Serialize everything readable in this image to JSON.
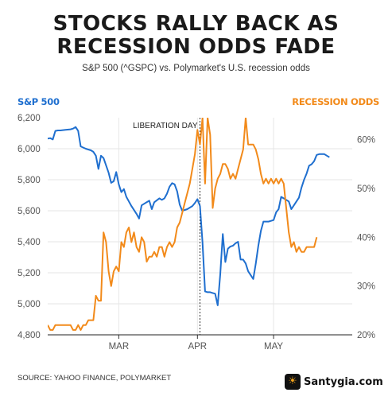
{
  "title_lines": [
    "STOCKS RALLY BACK AS",
    "RECESSION ODDS FADE"
  ],
  "subtitle": "S&P 500 (^GSPC) vs. Polymarket's U.S. recession odds",
  "source": "SOURCE: YAHOO FINANCE, POLYMARKET",
  "brand": {
    "name": "Santygia.com",
    "icon": "sun-logo-icon"
  },
  "colors": {
    "sp500": "#1f6fcf",
    "recession": "#f28a1a",
    "grid": "#e6e6e6",
    "text": "#555555"
  },
  "chart_data": {
    "type": "line",
    "title": "STOCKS RALLY BACK AS RECESSION ODDS FADE",
    "subtitle": "S&P 500 (^GSPC) vs. Polymarket's U.S. recession odds",
    "left_axis": {
      "label": "S&P 500",
      "ticks": [
        "6,200",
        "6,000",
        "5,800",
        "5,600",
        "5,400",
        "5,200",
        "5,000",
        "4,800"
      ],
      "tick_values": [
        6200,
        6000,
        5800,
        5600,
        5400,
        5200,
        5000,
        4800
      ],
      "ylim": [
        4800,
        6200
      ]
    },
    "right_axis": {
      "label": "RECESSION ODDS",
      "ticks": [
        "60%",
        "50%",
        "40%",
        "30%",
        "20%"
      ],
      "tick_values": [
        60,
        50,
        40,
        30,
        20
      ],
      "ylim": [
        20,
        64.5
      ]
    },
    "x_ticks": [
      {
        "label": "MAR",
        "day": 28
      },
      {
        "label": "APR",
        "day": 59
      },
      {
        "label": "MAY",
        "day": 89
      }
    ],
    "xlim": [
      0,
      120
    ],
    "annotation": {
      "label": "LIBERATION DAY",
      "day": 60
    },
    "grid": true,
    "series": [
      {
        "name": "S&P 500",
        "axis": "left",
        "points": [
          [
            0,
            6065
          ],
          [
            1,
            6068
          ],
          [
            2,
            6060
          ],
          [
            3,
            6115
          ],
          [
            4,
            6118
          ],
          [
            5,
            6118
          ],
          [
            7,
            6122
          ],
          [
            9,
            6125
          ],
          [
            10,
            6130
          ],
          [
            11,
            6140
          ],
          [
            12,
            6115
          ],
          [
            13,
            6015
          ],
          [
            15,
            6000
          ],
          [
            17,
            5990
          ],
          [
            18,
            5980
          ],
          [
            19,
            5955
          ],
          [
            20,
            5870
          ],
          [
            21,
            5955
          ],
          [
            22,
            5940
          ],
          [
            24,
            5845
          ],
          [
            25,
            5780
          ],
          [
            26,
            5790
          ],
          [
            27,
            5850
          ],
          [
            28,
            5770
          ],
          [
            29,
            5720
          ],
          [
            30,
            5740
          ],
          [
            31,
            5690
          ],
          [
            32,
            5660
          ],
          [
            33,
            5630
          ],
          [
            35,
            5580
          ],
          [
            36,
            5550
          ],
          [
            37,
            5635
          ],
          [
            38,
            5645
          ],
          [
            40,
            5665
          ],
          [
            41,
            5610
          ],
          [
            42,
            5655
          ],
          [
            44,
            5680
          ],
          [
            45,
            5670
          ],
          [
            46,
            5680
          ],
          [
            47,
            5710
          ],
          [
            48,
            5755
          ],
          [
            49,
            5778
          ],
          [
            50,
            5770
          ],
          [
            51,
            5725
          ],
          [
            52,
            5640
          ],
          [
            53,
            5600
          ],
          [
            55,
            5610
          ],
          [
            57,
            5630
          ],
          [
            58,
            5650
          ],
          [
            59,
            5675
          ],
          [
            60,
            5630
          ],
          [
            61,
            5395
          ],
          [
            62,
            5080
          ],
          [
            63,
            5075
          ],
          [
            64,
            5075
          ],
          [
            65,
            5070
          ],
          [
            66,
            5065
          ],
          [
            67,
            4990
          ],
          [
            68,
            5190
          ],
          [
            69,
            5450
          ],
          [
            70,
            5270
          ],
          [
            71,
            5355
          ],
          [
            72,
            5370
          ],
          [
            73,
            5375
          ],
          [
            74,
            5390
          ],
          [
            75,
            5400
          ],
          [
            76,
            5285
          ],
          [
            77,
            5285
          ],
          [
            78,
            5260
          ],
          [
            79,
            5210
          ],
          [
            80,
            5185
          ],
          [
            81,
            5160
          ],
          [
            82,
            5260
          ],
          [
            83,
            5375
          ],
          [
            84,
            5470
          ],
          [
            85,
            5530
          ],
          [
            86,
            5530
          ],
          [
            87,
            5530
          ],
          [
            88,
            5535
          ],
          [
            89,
            5540
          ],
          [
            90,
            5590
          ],
          [
            91,
            5610
          ],
          [
            92,
            5690
          ],
          [
            93,
            5680
          ],
          [
            94,
            5670
          ],
          [
            95,
            5660
          ],
          [
            96,
            5610
          ],
          [
            97,
            5635
          ],
          [
            98,
            5660
          ],
          [
            99,
            5685
          ],
          [
            100,
            5750
          ],
          [
            101,
            5800
          ],
          [
            102,
            5840
          ],
          [
            103,
            5890
          ],
          [
            104,
            5900
          ],
          [
            105,
            5920
          ],
          [
            106,
            5960
          ],
          [
            107,
            5965
          ],
          [
            108,
            5965
          ],
          [
            109,
            5965
          ],
          [
            110,
            5955
          ],
          [
            111,
            5945
          ]
        ]
      },
      {
        "name": "RECESSION ODDS",
        "axis": "right",
        "points": [
          [
            0,
            22
          ],
          [
            1,
            21
          ],
          [
            2,
            21
          ],
          [
            3,
            22
          ],
          [
            4,
            22
          ],
          [
            5,
            22
          ],
          [
            6,
            22
          ],
          [
            8,
            22
          ],
          [
            9,
            22
          ],
          [
            10,
            21
          ],
          [
            11,
            21
          ],
          [
            12,
            22
          ],
          [
            13,
            21
          ],
          [
            14,
            22
          ],
          [
            15,
            22
          ],
          [
            16,
            23
          ],
          [
            17,
            23
          ],
          [
            18,
            23
          ],
          [
            19,
            28
          ],
          [
            20,
            27
          ],
          [
            21,
            27
          ],
          [
            22,
            41
          ],
          [
            23,
            39
          ],
          [
            24,
            33
          ],
          [
            25,
            30
          ],
          [
            26,
            33
          ],
          [
            27,
            34
          ],
          [
            28,
            33
          ],
          [
            29,
            39
          ],
          [
            30,
            38
          ],
          [
            31,
            41
          ],
          [
            32,
            42
          ],
          [
            33,
            39
          ],
          [
            34,
            41
          ],
          [
            35,
            38
          ],
          [
            36,
            37
          ],
          [
            37,
            40
          ],
          [
            38,
            39
          ],
          [
            39,
            35
          ],
          [
            40,
            36
          ],
          [
            41,
            36
          ],
          [
            42,
            37
          ],
          [
            43,
            36
          ],
          [
            44,
            38
          ],
          [
            45,
            38
          ],
          [
            46,
            36
          ],
          [
            47,
            38
          ],
          [
            48,
            39
          ],
          [
            49,
            38
          ],
          [
            50,
            39
          ],
          [
            51,
            42
          ],
          [
            52,
            43
          ],
          [
            53,
            45
          ],
          [
            54,
            47
          ],
          [
            55,
            49
          ],
          [
            56,
            51
          ],
          [
            57,
            54
          ],
          [
            58,
            57
          ],
          [
            59,
            62
          ],
          [
            60,
            59
          ],
          [
            61,
            64.5
          ],
          [
            62,
            51
          ],
          [
            63,
            64.5
          ],
          [
            64,
            61
          ],
          [
            65,
            46
          ],
          [
            66,
            50
          ],
          [
            67,
            52
          ],
          [
            68,
            53
          ],
          [
            69,
            55
          ],
          [
            70,
            55
          ],
          [
            71,
            54
          ],
          [
            72,
            52
          ],
          [
            73,
            53
          ],
          [
            74,
            52
          ],
          [
            75,
            54
          ],
          [
            76,
            56
          ],
          [
            77,
            58
          ],
          [
            78,
            64.5
          ],
          [
            79,
            59
          ],
          [
            80,
            59
          ],
          [
            81,
            59
          ],
          [
            82,
            58
          ],
          [
            83,
            56
          ],
          [
            84,
            53
          ],
          [
            85,
            51
          ],
          [
            86,
            52
          ],
          [
            87,
            51
          ],
          [
            88,
            52
          ],
          [
            89,
            51
          ],
          [
            90,
            52
          ],
          [
            91,
            51
          ],
          [
            92,
            52
          ],
          [
            93,
            51
          ],
          [
            94,
            46
          ],
          [
            95,
            41
          ],
          [
            96,
            38
          ],
          [
            97,
            39
          ],
          [
            98,
            37
          ],
          [
            99,
            38
          ],
          [
            100,
            37
          ],
          [
            101,
            37
          ],
          [
            102,
            38
          ],
          [
            103,
            38
          ],
          [
            104,
            38
          ],
          [
            105,
            38
          ],
          [
            106,
            40
          ]
        ]
      }
    ]
  }
}
